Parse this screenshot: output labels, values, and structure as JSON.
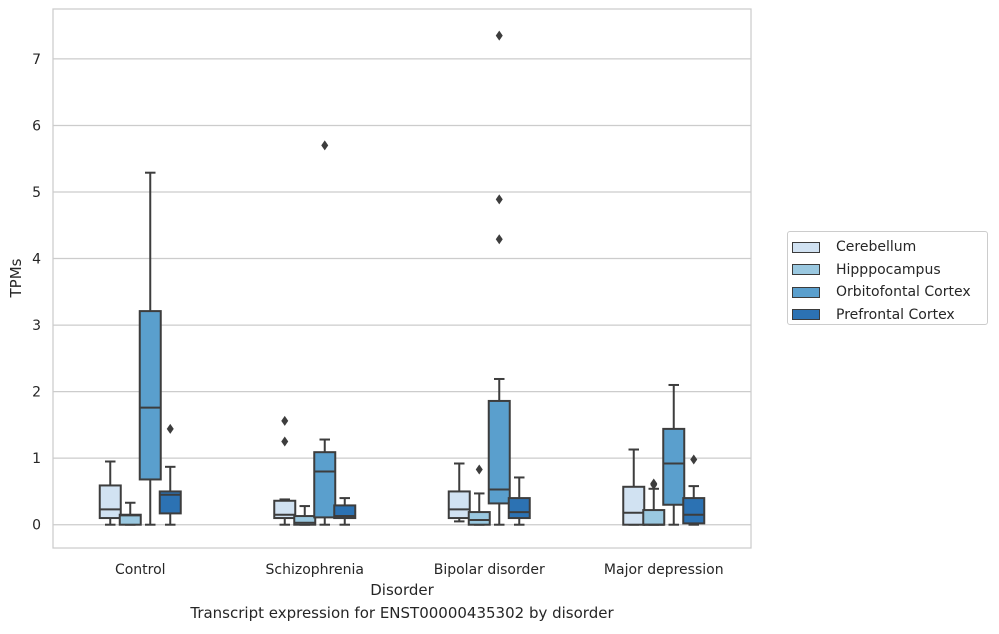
{
  "chart_data": {
    "type": "box",
    "title": "",
    "caption": "Transcript expression for ENST00000435302 by disorder",
    "xlabel": "Disorder",
    "ylabel": "TPMs",
    "ylim": [
      -0.35,
      7.75
    ],
    "yticks": [
      "0",
      "1",
      "2",
      "3",
      "4",
      "5",
      "6",
      "7"
    ],
    "categories": [
      "Control",
      "Schizophrenia",
      "Bipolar disorder",
      "Major depression"
    ],
    "grid": "horizontal",
    "legend_position": "right",
    "series": [
      {
        "name": "Cerebellum",
        "color": "#d1e2f2",
        "boxes": [
          {
            "whislo": 0.0,
            "q1": 0.1,
            "med": 0.23,
            "q3": 0.59,
            "whishi": 0.95,
            "fliers": []
          },
          {
            "whislo": 0.0,
            "q1": 0.1,
            "med": 0.15,
            "q3": 0.36,
            "whishi": 0.38,
            "fliers": [
              1.25,
              1.56
            ]
          },
          {
            "whislo": 0.05,
            "q1": 0.1,
            "med": 0.23,
            "q3": 0.5,
            "whishi": 0.92,
            "fliers": []
          },
          {
            "whislo": 0.0,
            "q1": 0.0,
            "med": 0.18,
            "q3": 0.57,
            "whishi": 1.13,
            "fliers": []
          }
        ]
      },
      {
        "name": "Hipppocampus",
        "color": "#9ac8e0",
        "boxes": [
          {
            "whislo": 0.0,
            "q1": 0.0,
            "med": 0.14,
            "q3": 0.15,
            "whishi": 0.33,
            "fliers": []
          },
          {
            "whislo": 0.0,
            "q1": 0.0,
            "med": 0.03,
            "q3": 0.13,
            "whishi": 0.28,
            "fliers": []
          },
          {
            "whislo": 0.0,
            "q1": 0.0,
            "med": 0.07,
            "q3": 0.19,
            "whishi": 0.47,
            "fliers": [
              0.83
            ]
          },
          {
            "whislo": 0.0,
            "q1": 0.0,
            "med": 0.0,
            "q3": 0.22,
            "whishi": 0.54,
            "fliers": [
              0.6,
              0.62
            ]
          }
        ]
      },
      {
        "name": "Orbitofontal Cortex",
        "color": "#5a9fcd",
        "boxes": [
          {
            "whislo": 0.0,
            "q1": 0.68,
            "med": 1.76,
            "q3": 3.21,
            "whishi": 5.29,
            "fliers": []
          },
          {
            "whislo": 0.0,
            "q1": 0.11,
            "med": 0.8,
            "q3": 1.09,
            "whishi": 1.28,
            "fliers": [
              5.7
            ]
          },
          {
            "whislo": 0.0,
            "q1": 0.32,
            "med": 0.53,
            "q3": 1.86,
            "whishi": 2.19,
            "fliers": [
              4.29,
              4.89,
              7.35
            ]
          },
          {
            "whislo": 0.0,
            "q1": 0.3,
            "med": 0.92,
            "q3": 1.44,
            "whishi": 2.1,
            "fliers": []
          }
        ]
      },
      {
        "name": "Prefrontal Cortex",
        "color": "#2c72b3",
        "boxes": [
          {
            "whislo": 0.0,
            "q1": 0.17,
            "med": 0.45,
            "q3": 0.5,
            "whishi": 0.87,
            "fliers": [
              1.44
            ]
          },
          {
            "whislo": 0.0,
            "q1": 0.1,
            "med": 0.13,
            "q3": 0.29,
            "whishi": 0.4,
            "fliers": []
          },
          {
            "whislo": 0.0,
            "q1": 0.1,
            "med": 0.19,
            "q3": 0.4,
            "whishi": 0.71,
            "fliers": []
          },
          {
            "whislo": 0.0,
            "q1": 0.02,
            "med": 0.15,
            "q3": 0.4,
            "whishi": 0.58,
            "fliers": [
              0.98
            ]
          }
        ]
      }
    ]
  }
}
